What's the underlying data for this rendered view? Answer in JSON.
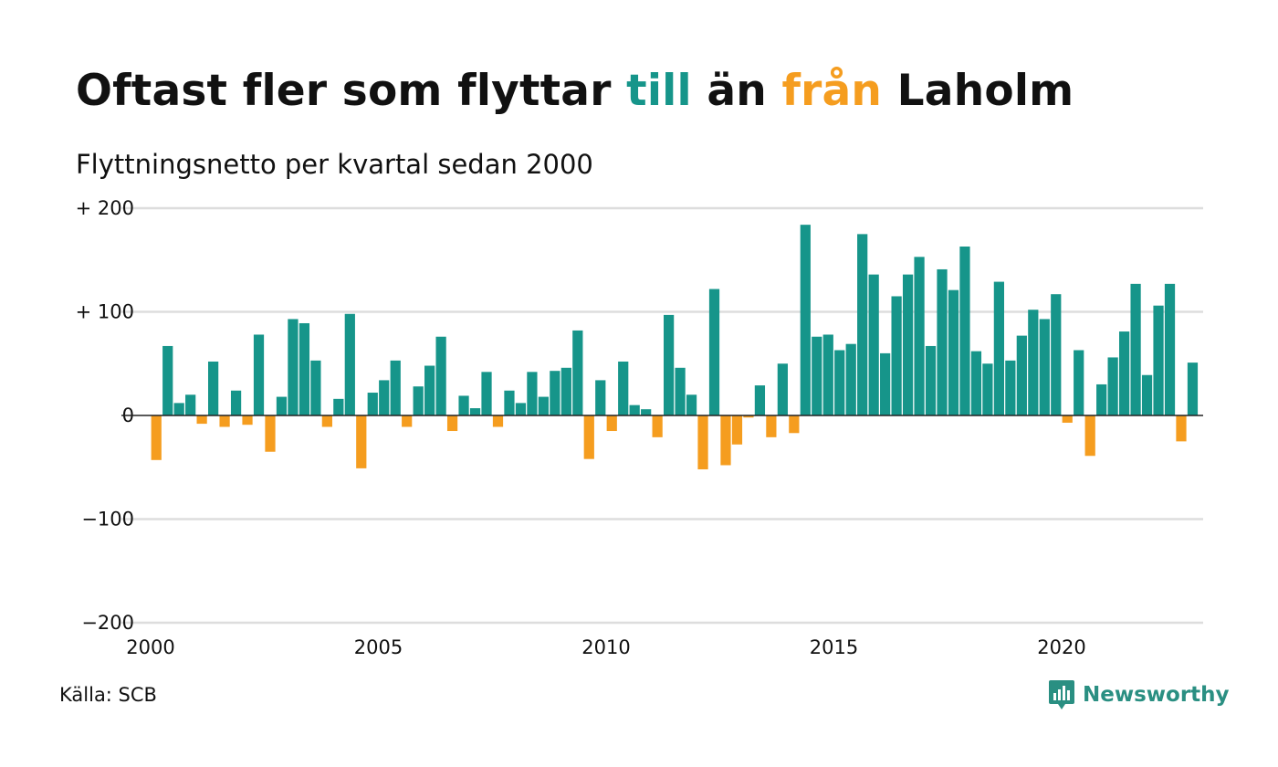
{
  "title": {
    "part1": "Oftast fler som flyttar ",
    "pos_word": "till",
    "part2": " än ",
    "neg_word": "från",
    "part3": " Laholm"
  },
  "subtitle": "Flyttningsnetto per kvartal sedan 2000",
  "source": "Källa: SCB",
  "logo": {
    "text": "Newsworthy",
    "icon": "bar-chart-icon"
  },
  "colors": {
    "positive": "#16958a",
    "negative": "#f59d1f",
    "grid": "#dddddd",
    "zero_line": "#222222"
  },
  "chart_data": {
    "type": "bar",
    "x_start_year": 2000,
    "periods_per_year": 4,
    "values": [
      -43,
      67,
      12,
      20,
      -8,
      52,
      -11,
      24,
      -9,
      78,
      -35,
      18,
      93,
      89,
      53,
      -11,
      16,
      98,
      -51,
      22,
      34,
      53,
      -11,
      28,
      48,
      76,
      -15,
      19,
      7,
      42,
      -11,
      24,
      12,
      42,
      18,
      43,
      46,
      82,
      -42,
      34,
      -15,
      52,
      10,
      6,
      -21,
      97,
      46,
      20,
      -52,
      122,
      -48,
      -28,
      -2,
      29,
      -21,
      50,
      -17,
      184,
      76,
      78,
      63,
      69,
      175,
      136,
      60,
      115,
      136,
      153,
      67,
      141,
      121,
      163,
      62,
      50,
      129,
      53,
      77,
      102,
      93,
      117,
      -7,
      63,
      -39,
      30,
      56,
      81,
      127,
      39,
      106,
      127,
      -25,
      51
    ],
    "ylim": [
      -200,
      200
    ],
    "yticks": [
      200,
      100,
      0,
      -100,
      -200
    ],
    "ytick_labels": [
      "+ 200",
      "+ 100",
      "0",
      "−100",
      "−200"
    ],
    "xticks": [
      2000,
      2005,
      2010,
      2015,
      2020
    ],
    "xtick_labels": [
      "2000",
      "2005",
      "2010",
      "2015",
      "2020"
    ],
    "grid": true
  }
}
